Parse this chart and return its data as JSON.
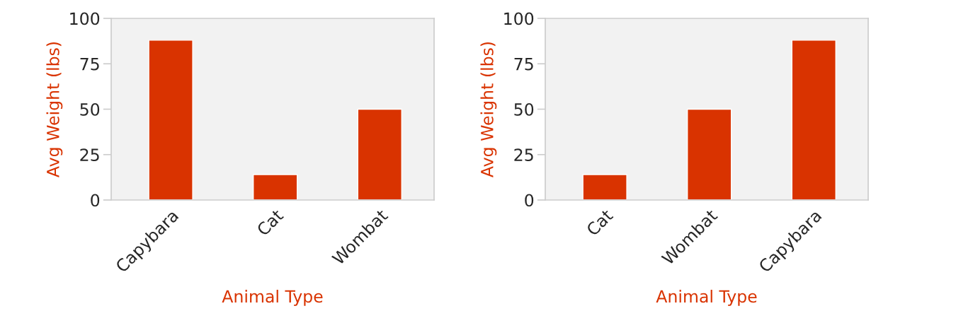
{
  "chart_data": [
    {
      "type": "bar",
      "categories": [
        "Capybara",
        "Cat",
        "Wombat"
      ],
      "values": [
        88,
        14,
        50
      ],
      "color": "#d93300",
      "xlabel": "Animal Type",
      "ylabel": "Avg Weight (lbs)",
      "ylim": [
        0,
        100
      ],
      "yticks": [
        0,
        25,
        50,
        75,
        100
      ],
      "grid": false
    },
    {
      "type": "bar",
      "categories": [
        "Cat",
        "Wombat",
        "Capybara"
      ],
      "values": [
        14,
        50,
        88
      ],
      "color": "#d93300",
      "xlabel": "Animal Type",
      "ylabel": "Avg Weight (lbs)",
      "ylim": [
        0,
        100
      ],
      "yticks": [
        0,
        25,
        50,
        75,
        100
      ],
      "grid": false
    }
  ]
}
